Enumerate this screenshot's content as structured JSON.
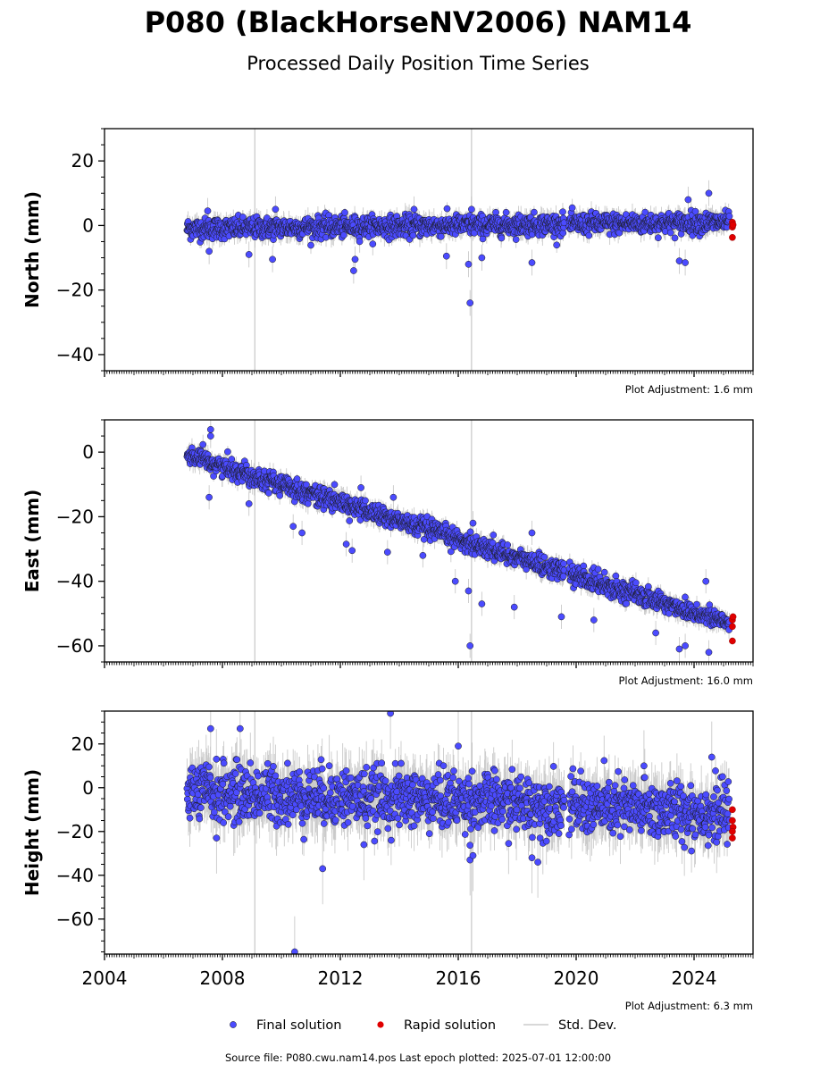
{
  "title": "P080 (BlackHorseNV2006) NAM14",
  "subtitle": "Processed Daily Position Time Series",
  "footer": "Source file: P080.cwu.nam14.pos  Last epoch plotted: 2025-07-01 12:00:00",
  "legend": {
    "final": "Final solution",
    "rapid": "Rapid solution",
    "std": "Std. Dev."
  },
  "colors": {
    "final": "#4b4bff",
    "final_edge": "#1a1a1a",
    "rapid": "#e00000",
    "std": "#bdbdbd",
    "event_line": "#cccccc"
  },
  "chart_data": [
    {
      "type": "scatter",
      "ylabel": "North (mm)",
      "adjustment": "Plot Adjustment: 1.6 mm",
      "xlim": [
        2004,
        2026
      ],
      "ylim": [
        -45,
        30
      ],
      "yticks": [
        20,
        0,
        -20,
        -40
      ],
      "xticks": [
        2004,
        2008,
        2012,
        2016,
        2020,
        2024
      ],
      "show_xtick_labels": false,
      "vlines": [
        2009.1,
        2016.45
      ],
      "data_start": 2006.8,
      "gap": [
        2019.6,
        2019.75
      ],
      "last_final": 2025.2,
      "trend": [
        {
          "t": 2006.8,
          "v": -1
        },
        {
          "t": 2025.2,
          "v": 1
        }
      ],
      "noise_sd": 1.6,
      "outliers": [
        {
          "t": 2007.55,
          "v": -8
        },
        {
          "t": 2008.9,
          "v": -9
        },
        {
          "t": 2009.7,
          "v": -10.5
        },
        {
          "t": 2012.5,
          "v": -10.5
        },
        {
          "t": 2012.45,
          "v": -14
        },
        {
          "t": 2016.4,
          "v": -24
        },
        {
          "t": 2016.35,
          "v": -12
        },
        {
          "t": 2016.8,
          "v": -10
        },
        {
          "t": 2015.6,
          "v": -9.5
        },
        {
          "t": 2018.5,
          "v": -11.5
        },
        {
          "t": 2023.5,
          "v": -11
        },
        {
          "t": 2023.7,
          "v": -11.5
        },
        {
          "t": 2023.8,
          "v": 8
        },
        {
          "t": 2024.5,
          "v": 10
        },
        {
          "t": 2014.5,
          "v": 5
        },
        {
          "t": 2016.45,
          "v": 5
        },
        {
          "t": 2009.8,
          "v": 5
        },
        {
          "t": 2007.5,
          "v": 4.5
        }
      ],
      "rapid": [
        {
          "t": 2025.3,
          "v": 1.0
        },
        {
          "t": 2025.3,
          "v": -0.5
        },
        {
          "t": 2025.32,
          "v": 0.2
        },
        {
          "t": 2025.3,
          "v": -3.7
        }
      ]
    },
    {
      "type": "scatter",
      "ylabel": "East (mm)",
      "adjustment": "Plot Adjustment: 16.0 mm",
      "xlim": [
        2004,
        2026
      ],
      "ylim": [
        -65,
        10
      ],
      "yticks": [
        0,
        -20,
        -40,
        -60
      ],
      "xticks": [
        2004,
        2008,
        2012,
        2016,
        2020,
        2024
      ],
      "show_xtick_labels": false,
      "vlines": [
        2009.1,
        2016.45
      ],
      "data_start": 2006.8,
      "gap": [
        2019.6,
        2019.75
      ],
      "last_final": 2025.2,
      "trend": [
        {
          "t": 2006.8,
          "v": -1
        },
        {
          "t": 2025.2,
          "v": -53
        }
      ],
      "noise_sd": 1.5,
      "outliers": [
        {
          "t": 2007.6,
          "v": 7
        },
        {
          "t": 2007.6,
          "v": 5
        },
        {
          "t": 2007.55,
          "v": -14
        },
        {
          "t": 2008.9,
          "v": -16
        },
        {
          "t": 2010.4,
          "v": -23
        },
        {
          "t": 2010.7,
          "v": -25
        },
        {
          "t": 2012.2,
          "v": -28.5
        },
        {
          "t": 2012.4,
          "v": -30.5
        },
        {
          "t": 2013.6,
          "v": -31
        },
        {
          "t": 2014.8,
          "v": -32
        },
        {
          "t": 2015.9,
          "v": -40
        },
        {
          "t": 2016.35,
          "v": -43
        },
        {
          "t": 2016.4,
          "v": -60
        },
        {
          "t": 2016.5,
          "v": -22
        },
        {
          "t": 2016.8,
          "v": -47
        },
        {
          "t": 2017.9,
          "v": -48
        },
        {
          "t": 2019.5,
          "v": -51
        },
        {
          "t": 2020.6,
          "v": -52
        },
        {
          "t": 2022.7,
          "v": -56
        },
        {
          "t": 2023.5,
          "v": -61
        },
        {
          "t": 2023.7,
          "v": -60
        },
        {
          "t": 2024.5,
          "v": -62
        },
        {
          "t": 2024.4,
          "v": -40
        },
        {
          "t": 2018.5,
          "v": -25
        },
        {
          "t": 2012.7,
          "v": -11
        },
        {
          "t": 2013.8,
          "v": -14
        }
      ],
      "rapid": [
        {
          "t": 2025.3,
          "v": -52
        },
        {
          "t": 2025.3,
          "v": -54
        },
        {
          "t": 2025.32,
          "v": -51
        },
        {
          "t": 2025.3,
          "v": -58.5
        }
      ]
    },
    {
      "type": "scatter",
      "ylabel": "Height (mm)",
      "adjustment": "Plot Adjustment: 6.3 mm",
      "xlim": [
        2004,
        2026
      ],
      "ylim": [
        -76,
        35
      ],
      "yticks": [
        20,
        0,
        -20,
        -40,
        -60
      ],
      "xticks": [
        2004,
        2008,
        2012,
        2016,
        2020,
        2024
      ],
      "show_xtick_labels": true,
      "vlines": [
        2009.1,
        2016.45
      ],
      "data_start": 2006.8,
      "gap": [
        2019.6,
        2019.75
      ],
      "last_final": 2025.2,
      "trend": [
        {
          "t": 2006.8,
          "v": -2
        },
        {
          "t": 2016.4,
          "v": -6
        },
        {
          "t": 2025.2,
          "v": -12
        }
      ],
      "noise_sd": 6.5,
      "outliers": [
        {
          "t": 2013.7,
          "v": 34
        },
        {
          "t": 2007.6,
          "v": 27
        },
        {
          "t": 2008.6,
          "v": 27
        },
        {
          "t": 2011.4,
          "v": -37
        },
        {
          "t": 2010.45,
          "v": -75
        },
        {
          "t": 2016.0,
          "v": 19
        },
        {
          "t": 2016.4,
          "v": -33
        },
        {
          "t": 2016.5,
          "v": -31
        },
        {
          "t": 2018.5,
          "v": -32
        },
        {
          "t": 2018.7,
          "v": -34
        },
        {
          "t": 2024.6,
          "v": 14
        },
        {
          "t": 2022.3,
          "v": 10
        },
        {
          "t": 2012.8,
          "v": -26
        },
        {
          "t": 2007.8,
          "v": -23
        }
      ],
      "rapid": [
        {
          "t": 2025.3,
          "v": -10
        },
        {
          "t": 2025.3,
          "v": -15
        },
        {
          "t": 2025.32,
          "v": -18
        },
        {
          "t": 2025.3,
          "v": -20
        },
        {
          "t": 2025.3,
          "v": -23
        }
      ]
    }
  ]
}
